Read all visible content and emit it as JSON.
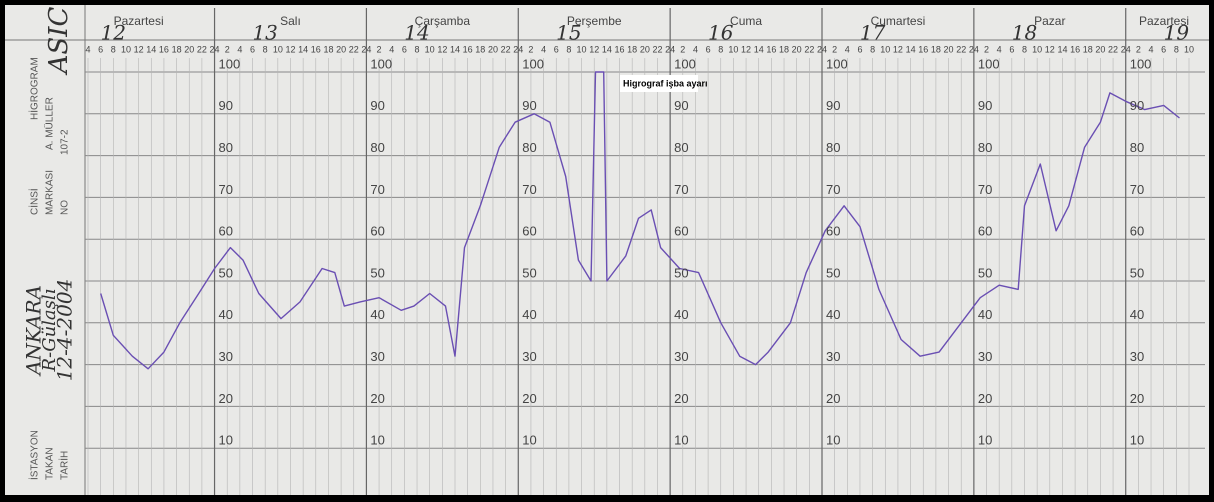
{
  "chart_data": {
    "type": "line",
    "days": [
      "Pazartesi",
      "Salı",
      "Çarşamba",
      "Perşembe",
      "Cuma",
      "Cumartesi",
      "Pazar",
      "Pazartesi"
    ],
    "day_numbers": [
      "12",
      "13",
      "14",
      "15",
      "16",
      "17",
      "18",
      "19"
    ],
    "annotation": "Higrograf işba ayarı",
    "color": "#6a4fb3",
    "x": [
      6,
      8,
      11,
      13.5,
      16,
      18.5,
      21.5,
      24,
      26.5,
      28.5,
      31,
      34.5,
      37.5,
      41,
      43,
      44.5,
      47,
      50,
      53.5,
      55.5,
      58,
      60.5,
      62,
      63.5,
      66,
      69,
      71.5,
      74.5,
      77,
      79.5,
      81.5,
      83.5,
      84.2,
      85.5,
      86,
      89,
      91,
      93,
      94.5,
      97.5,
      100.5,
      104,
      107,
      109.5,
      111.5,
      115,
      117.5,
      120.5,
      123.5,
      126,
      129,
      132.5,
      135.5,
      138.5,
      142,
      145,
      148,
      151,
      152,
      154.5,
      157,
      159,
      161.5,
      164,
      165.5,
      168,
      171,
      174,
      176.5
    ],
    "values": [
      47,
      37,
      32,
      29,
      33,
      40,
      47,
      53,
      58,
      55,
      47,
      41,
      45,
      53,
      52,
      44,
      45,
      46,
      43,
      44,
      47,
      44,
      32,
      58,
      68,
      82,
      88,
      90,
      88,
      75,
      55,
      50,
      100,
      100,
      50,
      56,
      65,
      67,
      58,
      53,
      52,
      40,
      32,
      30,
      33,
      40,
      52,
      62,
      68,
      63,
      48,
      36,
      32,
      33,
      40,
      46,
      49,
      48,
      68,
      78,
      62,
      68,
      82,
      88,
      95,
      93,
      91,
      92,
      89
    ],
    "xlim": [
      4,
      178
    ],
    "xticks": [
      4,
      6,
      8,
      10,
      12,
      14,
      16,
      18,
      20,
      22,
      24,
      {
        "value": 26,
        "label": "2"
      },
      {
        "value": 28,
        "label": "4"
      },
      {
        "value": 30,
        "label": "6"
      },
      {
        "value": 32,
        "label": "8"
      },
      {
        "value": 34,
        "label": "10"
      },
      {
        "value": 36,
        "label": "12"
      },
      {
        "value": 38,
        "label": "14"
      },
      {
        "value": 40,
        "label": "16"
      },
      {
        "value": 42,
        "label": "18"
      },
      {
        "value": 44,
        "label": "20"
      },
      {
        "value": 46,
        "label": "22"
      },
      {
        "value": 48,
        "label": "24"
      },
      {
        "value": 50,
        "label": "2"
      },
      {
        "value": 52,
        "label": "4"
      },
      {
        "value": 54,
        "label": "6"
      },
      {
        "value": 56,
        "label": "8"
      },
      {
        "value": 58,
        "label": "10"
      },
      {
        "value": 60,
        "label": "12"
      },
      {
        "value": 62,
        "label": "14"
      },
      {
        "value": 64,
        "label": "16"
      },
      {
        "value": 66,
        "label": "18"
      },
      {
        "value": 68,
        "label": "20"
      },
      {
        "value": 70,
        "label": "22"
      },
      {
        "value": 72,
        "label": "24"
      },
      {
        "value": 74,
        "label": "2"
      },
      {
        "value": 76,
        "label": "4"
      },
      {
        "value": 78,
        "label": "6"
      },
      {
        "value": 80,
        "label": "8"
      },
      {
        "value": 82,
        "label": "10"
      },
      {
        "value": 84,
        "label": "12"
      },
      {
        "value": 86,
        "label": "14"
      },
      {
        "value": 88,
        "label": "16"
      },
      {
        "value": 90,
        "label": "18"
      },
      {
        "value": 92,
        "label": "20"
      },
      {
        "value": 94,
        "label": "22"
      },
      {
        "value": 96,
        "label": "24"
      },
      {
        "value": 98,
        "label": "2"
      },
      {
        "value": 100,
        "label": "4"
      },
      {
        "value": 102,
        "label": "6"
      },
      {
        "value": 104,
        "label": "8"
      },
      {
        "value": 106,
        "label": "10"
      },
      {
        "value": 108,
        "label": "12"
      },
      {
        "value": 110,
        "label": "14"
      },
      {
        "value": 112,
        "label": "16"
      },
      {
        "value": 114,
        "label": "18"
      },
      {
        "value": 116,
        "label": "20"
      },
      {
        "value": 118,
        "label": "22"
      },
      {
        "value": 120,
        "label": "24"
      },
      {
        "value": 122,
        "label": "2"
      },
      {
        "value": 124,
        "label": "4"
      },
      {
        "value": 126,
        "label": "6"
      },
      {
        "value": 128,
        "label": "8"
      },
      {
        "value": 130,
        "label": "10"
      },
      {
        "value": 132,
        "label": "12"
      },
      {
        "value": 134,
        "label": "14"
      },
      {
        "value": 136,
        "label": "16"
      },
      {
        "value": 138,
        "label": "18"
      },
      {
        "value": 140,
        "label": "20"
      },
      {
        "value": 142,
        "label": "22"
      },
      {
        "value": 144,
        "label": "24"
      },
      {
        "value": 146,
        "label": "2"
      },
      {
        "value": 148,
        "label": "4"
      },
      {
        "value": 150,
        "label": "6"
      },
      {
        "value": 152,
        "label": "8"
      },
      {
        "value": 154,
        "label": "10"
      },
      {
        "value": 156,
        "label": "12"
      },
      {
        "value": 158,
        "label": "14"
      },
      {
        "value": 160,
        "label": "16"
      },
      {
        "value": 162,
        "label": "18"
      },
      {
        "value": 164,
        "label": "20"
      },
      {
        "value": 166,
        "label": "22"
      },
      {
        "value": 168,
        "label": "24"
      },
      {
        "value": 170,
        "label": "2"
      },
      {
        "value": 172,
        "label": "4"
      },
      {
        "value": 174,
        "label": "6"
      },
      {
        "value": 176,
        "label": "8"
      },
      {
        "value": 178,
        "label": "10"
      }
    ],
    "ylim": [
      0,
      100
    ],
    "yticks": [
      10,
      20,
      30,
      40,
      50,
      60,
      70,
      80,
      90,
      100
    ],
    "grid": true
  },
  "form": {
    "corner_note": "ASIC",
    "cinsi": "CİNSİ",
    "cinsi_value": "HİGROGRAM",
    "markasi": "MARKASI",
    "markasi_value": "A. MÜLLER",
    "no": "NO",
    "no_value": "107-2",
    "istasyon": "İSTASYON",
    "istasyon_value": "ANKARA",
    "takan": "TAKAN",
    "takan_value": "R-Gülaşlı",
    "tarih": "TARİH",
    "tarih_value": "12-4-2004"
  }
}
